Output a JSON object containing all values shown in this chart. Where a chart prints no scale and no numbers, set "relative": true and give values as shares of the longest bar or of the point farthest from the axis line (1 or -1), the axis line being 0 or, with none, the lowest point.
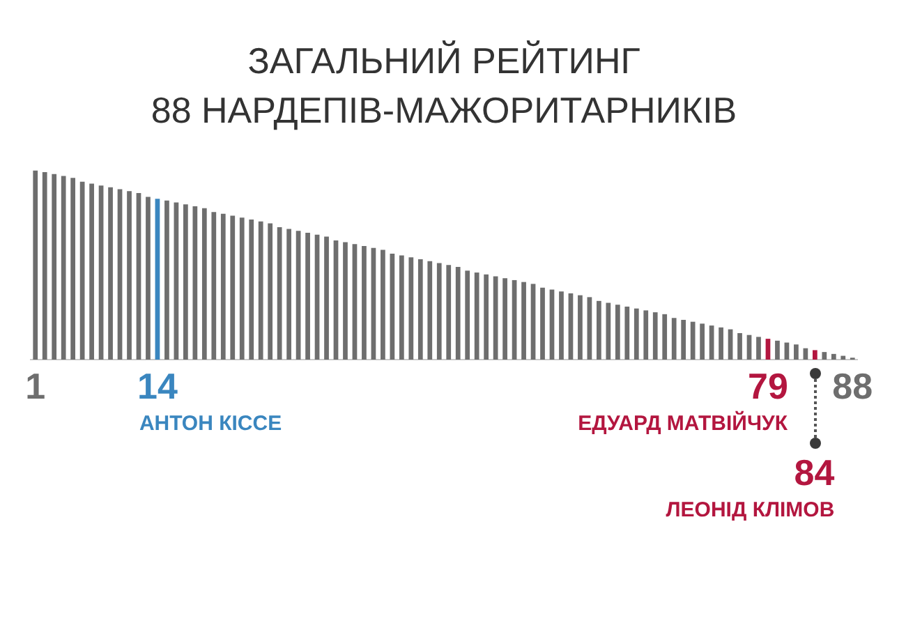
{
  "chart_data": {
    "type": "bar",
    "title": "ЗАГАЛЬНИЙ РЕЙТИНГ\n88 НАРДЕПІВ-МАЖОРИТАРНИКІВ",
    "relative": true,
    "categories": [
      "1",
      null,
      null,
      null,
      null,
      null,
      null,
      null,
      null,
      null,
      null,
      null,
      null,
      "14",
      null,
      null,
      null,
      null,
      null,
      null,
      null,
      null,
      null,
      null,
      null,
      null,
      null,
      null,
      null,
      null,
      null,
      null,
      null,
      null,
      null,
      null,
      null,
      null,
      null,
      null,
      null,
      null,
      null,
      null,
      null,
      null,
      null,
      null,
      null,
      null,
      null,
      null,
      null,
      null,
      null,
      null,
      null,
      null,
      null,
      null,
      null,
      null,
      null,
      null,
      null,
      null,
      null,
      null,
      null,
      null,
      null,
      null,
      null,
      null,
      null,
      null,
      null,
      null,
      "79",
      null,
      null,
      null,
      null,
      null,
      null,
      null,
      null,
      "88"
    ],
    "values": [
      1,
      0.99,
      0.98,
      0.97,
      0.96,
      0.94,
      0.93,
      0.92,
      0.91,
      0.9,
      0.89,
      0.88,
      0.86,
      0.85,
      0.84,
      0.83,
      0.82,
      0.81,
      0.8,
      0.78,
      0.77,
      0.76,
      0.75,
      0.74,
      0.73,
      0.72,
      0.7,
      0.69,
      0.68,
      0.67,
      0.66,
      0.65,
      0.63,
      0.62,
      0.61,
      0.6,
      0.59,
      0.58,
      0.56,
      0.55,
      0.54,
      0.53,
      0.52,
      0.51,
      0.5,
      0.49,
      0.47,
      0.46,
      0.45,
      0.44,
      0.43,
      0.42,
      0.41,
      0.4,
      0.38,
      0.37,
      0.36,
      0.35,
      0.34,
      0.33,
      0.31,
      0.3,
      0.29,
      0.28,
      0.27,
      0.26,
      0.25,
      0.24,
      0.22,
      0.21,
      0.2,
      0.19,
      0.18,
      0.17,
      0.16,
      0.14,
      0.13,
      0.12,
      0.11,
      0.1,
      0.09,
      0.08,
      0.06,
      0.05,
      0.04,
      0.03,
      0.02,
      0.01
    ],
    "colors": [
      "#6e6e6e",
      "#6e6e6e",
      "#6e6e6e",
      "#6e6e6e",
      "#6e6e6e",
      "#6e6e6e",
      "#6e6e6e",
      "#6e6e6e",
      "#6e6e6e",
      "#6e6e6e",
      "#6e6e6e",
      "#6e6e6e",
      "#6e6e6e",
      "#3a86bf",
      "#6e6e6e",
      "#6e6e6e",
      "#6e6e6e",
      "#6e6e6e",
      "#6e6e6e",
      "#6e6e6e",
      "#6e6e6e",
      "#6e6e6e",
      "#6e6e6e",
      "#6e6e6e",
      "#6e6e6e",
      "#6e6e6e",
      "#6e6e6e",
      "#6e6e6e",
      "#6e6e6e",
      "#6e6e6e",
      "#6e6e6e",
      "#6e6e6e",
      "#6e6e6e",
      "#6e6e6e",
      "#6e6e6e",
      "#6e6e6e",
      "#6e6e6e",
      "#6e6e6e",
      "#6e6e6e",
      "#6e6e6e",
      "#6e6e6e",
      "#6e6e6e",
      "#6e6e6e",
      "#6e6e6e",
      "#6e6e6e",
      "#6e6e6e",
      "#6e6e6e",
      "#6e6e6e",
      "#6e6e6e",
      "#6e6e6e",
      "#6e6e6e",
      "#6e6e6e",
      "#6e6e6e",
      "#6e6e6e",
      "#6e6e6e",
      "#6e6e6e",
      "#6e6e6e",
      "#6e6e6e",
      "#6e6e6e",
      "#6e6e6e",
      "#6e6e6e",
      "#6e6e6e",
      "#6e6e6e",
      "#6e6e6e",
      "#6e6e6e",
      "#6e6e6e",
      "#6e6e6e",
      "#6e6e6e",
      "#6e6e6e",
      "#6e6e6e",
      "#6e6e6e",
      "#6e6e6e",
      "#6e6e6e",
      "#6e6e6e",
      "#6e6e6e",
      "#6e6e6e",
      "#6e6e6e",
      "#6e6e6e",
      "#b3163f",
      "#6e6e6e",
      "#6e6e6e",
      "#6e6e6e",
      "#6e6e6e",
      "#b3163f",
      "#6e6e6e",
      "#6e6e6e",
      "#6e6e6e",
      "#6e6e6e"
    ],
    "annotations": [
      "АНТОН КІССЕ",
      "ЕДУАРД МАТВІЙЧУК",
      "84",
      "ЛЕОНІД КЛІМОВ"
    ]
  }
}
